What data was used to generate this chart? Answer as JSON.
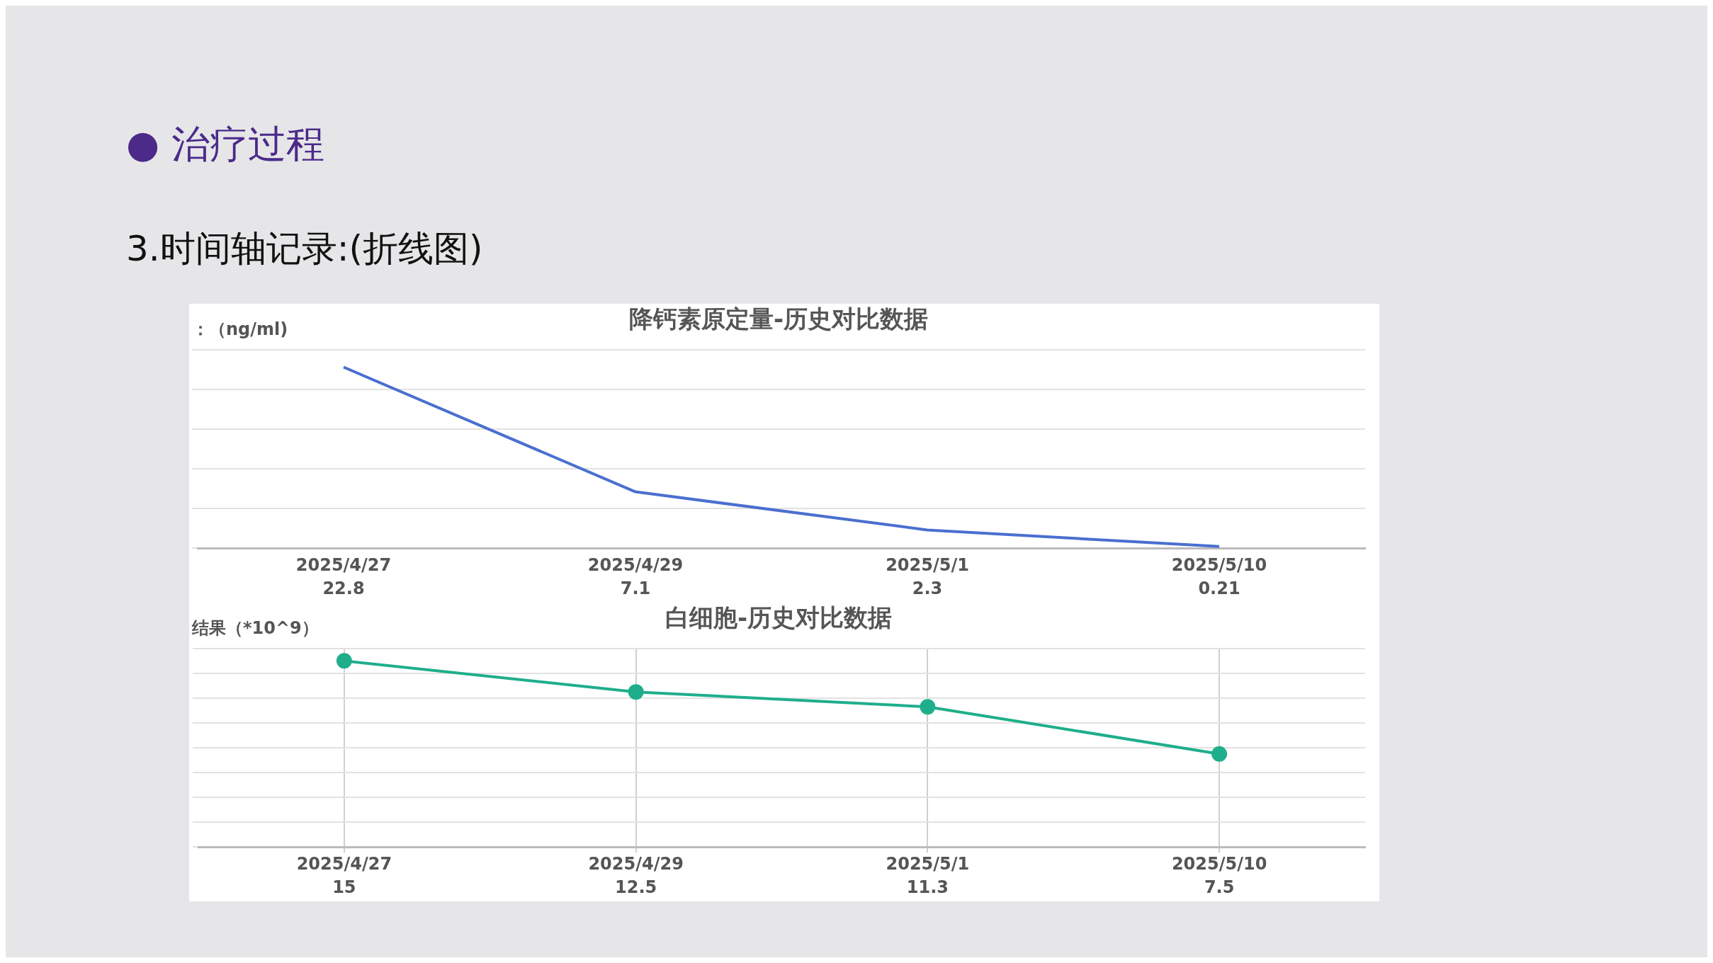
{
  "chart_data": [
    {
      "type": "line",
      "title": "降钙素原定量-历史对比数据",
      "ylabel": "：（ng/ml)",
      "annotations": [
        "● 治疗过程",
        "3.时间轴记录:(折线图)"
      ],
      "categories": [
        "2025/4/27",
        "2025/4/29",
        "2025/5/1",
        "2025/5/10"
      ],
      "series": [
        {
          "color": "#4a6fd0",
          "values": [
            22.8,
            7.1,
            2.3,
            0.21
          ]
        }
      ],
      "data_labels": true,
      "grid": "y",
      "tick_labels": "x",
      "marker": "none",
      "line_style": "solid"
    },
    {
      "type": "line",
      "title": "白细胞-历史对比数据",
      "ylabel": "结果（*10^9）",
      "categories": [
        "2025/4/27",
        "2025/4/29",
        "2025/5/1",
        "2025/5/10"
      ],
      "series": [
        {
          "color": "#1fae8c",
          "values": [
            15,
            12.5,
            11.3,
            7.5
          ]
        }
      ],
      "data_labels": true,
      "grid": true,
      "tick_labels": "x",
      "marker": "circle",
      "line_style": "solid"
    }
  ]
}
